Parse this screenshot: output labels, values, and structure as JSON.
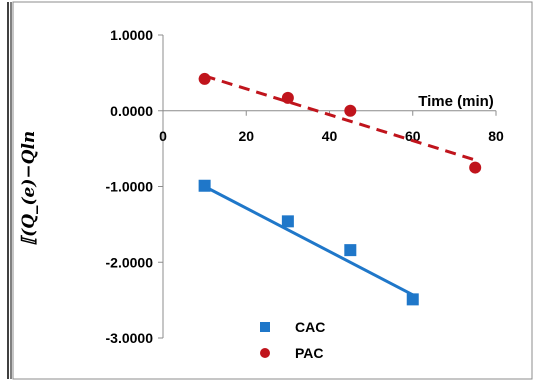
{
  "chart_data": {
    "type": "scatter",
    "title": "",
    "xlabel": "Time (min)",
    "ylabel": "⟦(Q_(e)−Qln",
    "xlim": [
      0,
      80
    ],
    "ylim": [
      -3,
      1
    ],
    "x_ticks": [
      "0",
      "20",
      "40",
      "60",
      "80"
    ],
    "y_ticks": [
      "1.0000",
      "0.0000",
      "-1.0000",
      "-2.0000",
      "-3.0000"
    ],
    "grid": false,
    "legend_position": "bottom-center",
    "series": [
      {
        "name": "CAC",
        "marker": "square",
        "color": "#1f77c9",
        "x": [
          10,
          30,
          45,
          60
        ],
        "y": [
          -0.99,
          -1.46,
          -1.84,
          -2.49
        ],
        "trendline": {
          "style": "solid",
          "x": [
            10,
            60
          ],
          "y": [
            -1.0,
            -2.43
          ]
        }
      },
      {
        "name": "PAC",
        "marker": "circle",
        "color": "#c0141c",
        "x": [
          10,
          30,
          45,
          75
        ],
        "y": [
          0.42,
          0.17,
          0.0,
          -0.75
        ],
        "trendline": {
          "style": "dashed",
          "x": [
            10,
            75
          ],
          "y": [
            0.46,
            -0.65
          ]
        }
      }
    ]
  }
}
